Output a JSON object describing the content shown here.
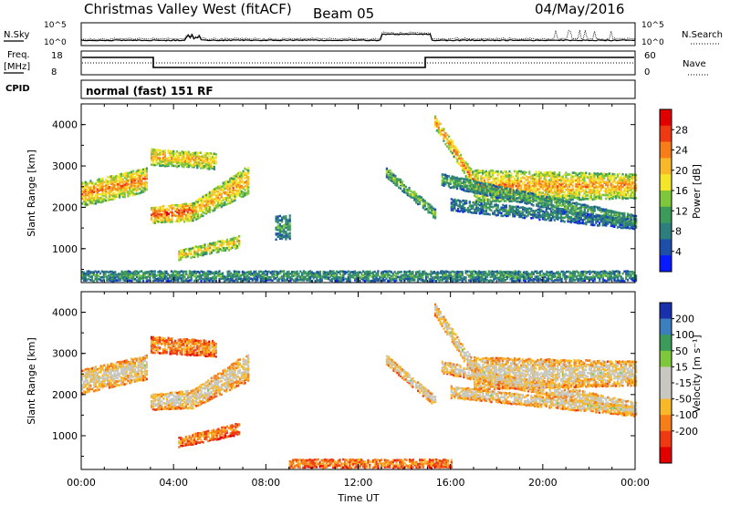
{
  "header": {
    "station": "Christmas Valley West (fitACF)",
    "beam": "Beam 05",
    "date": "04/May/2016"
  },
  "top_panels": {
    "nsky_label": "N.Sky",
    "nsearch_label": "N.Search",
    "noise_ticks": [
      "10^5",
      "10^0"
    ],
    "freq_label_1": "Freq.",
    "freq_label_2": "[MHz]",
    "freq_ticks": [
      "18",
      "8"
    ],
    "nave_label": "Nave",
    "nave_ticks": [
      "60",
      "0"
    ],
    "cpid_label": "CPID",
    "cpid_text": "normal (fast) 151 RF"
  },
  "colors": {
    "power_scale": [
      "#0a1aff",
      "#1e4fa8",
      "#2f7e7e",
      "#3c9a5a",
      "#7ec63c",
      "#f3e62a",
      "#f7b92a",
      "#f57e1a",
      "#ee3a12",
      "#e00000"
    ],
    "velocity_scale": [
      "#e00000",
      "#ee3a12",
      "#f57e1a",
      "#f7b92a",
      "#c8c8c0",
      "#c8c8c0",
      "#7ec63c",
      "#3c9a5a",
      "#3c7ebe",
      "#1a2faa"
    ]
  },
  "chart_data": [
    {
      "type": "heatmap",
      "name": "power",
      "xlabel": "Time UT",
      "ylabel": "Slant Range [km]",
      "x_ticks": [
        "00:00",
        "04:00",
        "08:00",
        "12:00",
        "16:00",
        "20:00",
        "00:00"
      ],
      "x_hours": [
        0,
        4,
        8,
        12,
        16,
        20,
        24
      ],
      "y_ticks": [
        1000,
        2000,
        3000,
        4000
      ],
      "ylim": [
        180,
        4500
      ],
      "colorbar_label": "Power [dB]",
      "colorbar_ticks": [
        4,
        8,
        12,
        16,
        20,
        24,
        28
      ],
      "colorbar_range": [
        0,
        32
      ],
      "scatter_bands": [
        {
          "t0": 0.0,
          "t1": 2.8,
          "r0": 2000,
          "r1": 2600,
          "r0_end": 2350,
          "r1_end": 2950,
          "level": 0.75
        },
        {
          "t0": 3.0,
          "t1": 4.8,
          "r0": 1600,
          "r1": 2000,
          "r0_end": 1650,
          "r1_end": 2100,
          "level": 0.85
        },
        {
          "t0": 4.8,
          "t1": 7.2,
          "r0": 1650,
          "r1": 2100,
          "r0_end": 2300,
          "r1_end": 3000,
          "level": 0.7
        },
        {
          "t0": 3.0,
          "t1": 5.8,
          "r0": 3000,
          "r1": 3400,
          "r0_end": 2900,
          "r1_end": 3300,
          "level": 0.7
        },
        {
          "t0": 4.2,
          "t1": 6.8,
          "r0": 700,
          "r1": 950,
          "r0_end": 1000,
          "r1_end": 1300,
          "level": 0.65
        },
        {
          "t0": 8.4,
          "t1": 9.0,
          "r0": 1200,
          "r1": 1800,
          "r0_end": 1200,
          "r1_end": 1800,
          "level": 0.35
        },
        {
          "t0": 13.2,
          "t1": 15.3,
          "r0": 2700,
          "r1": 2950,
          "r0_end": 1700,
          "r1_end": 1950,
          "level": 0.45
        },
        {
          "t0": 15.3,
          "t1": 17.0,
          "r0": 3900,
          "r1": 4200,
          "r0_end": 2400,
          "r1_end": 2800,
          "level": 0.75
        },
        {
          "t0": 17.0,
          "t1": 24.0,
          "r0": 2100,
          "r1": 2900,
          "r0_end": 2200,
          "r1_end": 2800,
          "level": 0.72
        },
        {
          "t0": 15.6,
          "t1": 24.0,
          "r0": 2500,
          "r1": 2800,
          "r0_end": 1500,
          "r1_end": 1800,
          "level": 0.4
        },
        {
          "t0": 16.0,
          "t1": 24.0,
          "r0": 1900,
          "r1": 2200,
          "r0_end": 1450,
          "r1_end": 1700,
          "level": 0.3
        },
        {
          "t0": 0.0,
          "t1": 24.0,
          "r0": 200,
          "r1": 450,
          "r0_end": 200,
          "r1_end": 450,
          "level": 0.35
        }
      ]
    },
    {
      "type": "heatmap",
      "name": "velocity",
      "xlabel": "Time UT",
      "ylabel": "Slant Range [km]",
      "x_ticks": [
        "00:00",
        "04:00",
        "08:00",
        "12:00",
        "16:00",
        "20:00",
        "00:00"
      ],
      "x_hours": [
        0,
        4,
        8,
        12,
        16,
        20,
        24
      ],
      "y_ticks": [
        1000,
        2000,
        3000,
        4000
      ],
      "ylim": [
        180,
        4500
      ],
      "colorbar_label": "Velocity [m s⁻¹]",
      "colorbar_ticks": [
        200,
        100,
        50,
        15,
        -15,
        -50,
        -100,
        -200
      ],
      "scatter_bands": [
        {
          "t0": 0.0,
          "t1": 2.8,
          "r0": 2000,
          "r1": 2600,
          "r0_end": 2350,
          "r1_end": 2950,
          "level": 0.5
        },
        {
          "t0": 3.0,
          "t1": 4.8,
          "r0": 1600,
          "r1": 2000,
          "r0_end": 1650,
          "r1_end": 2100,
          "level": 0.5
        },
        {
          "t0": 4.8,
          "t1": 7.2,
          "r0": 1650,
          "r1": 2100,
          "r0_end": 2300,
          "r1_end": 3000,
          "level": 0.5
        },
        {
          "t0": 3.0,
          "t1": 5.8,
          "r0": 3000,
          "r1": 3400,
          "r0_end": 2900,
          "r1_end": 3300,
          "level": 0.32
        },
        {
          "t0": 4.2,
          "t1": 6.8,
          "r0": 700,
          "r1": 950,
          "r0_end": 1000,
          "r1_end": 1300,
          "level": 0.3
        },
        {
          "t0": 13.2,
          "t1": 15.3,
          "r0": 2700,
          "r1": 2950,
          "r0_end": 1700,
          "r1_end": 1950,
          "level": 0.5
        },
        {
          "t0": 15.3,
          "t1": 17.0,
          "r0": 3900,
          "r1": 4200,
          "r0_end": 2400,
          "r1_end": 2800,
          "level": 0.5
        },
        {
          "t0": 17.0,
          "t1": 24.0,
          "r0": 2100,
          "r1": 2900,
          "r0_end": 2200,
          "r1_end": 2800,
          "level": 0.5
        },
        {
          "t0": 15.6,
          "t1": 24.0,
          "r0": 2500,
          "r1": 2800,
          "r0_end": 1500,
          "r1_end": 1800,
          "level": 0.5
        },
        {
          "t0": 16.0,
          "t1": 24.0,
          "r0": 1900,
          "r1": 2200,
          "r0_end": 1450,
          "r1_end": 1700,
          "level": 0.5
        },
        {
          "t0": 9.0,
          "t1": 16.0,
          "r0": 200,
          "r1": 420,
          "r0_end": 200,
          "r1_end": 420,
          "level": 0.3
        }
      ]
    }
  ]
}
